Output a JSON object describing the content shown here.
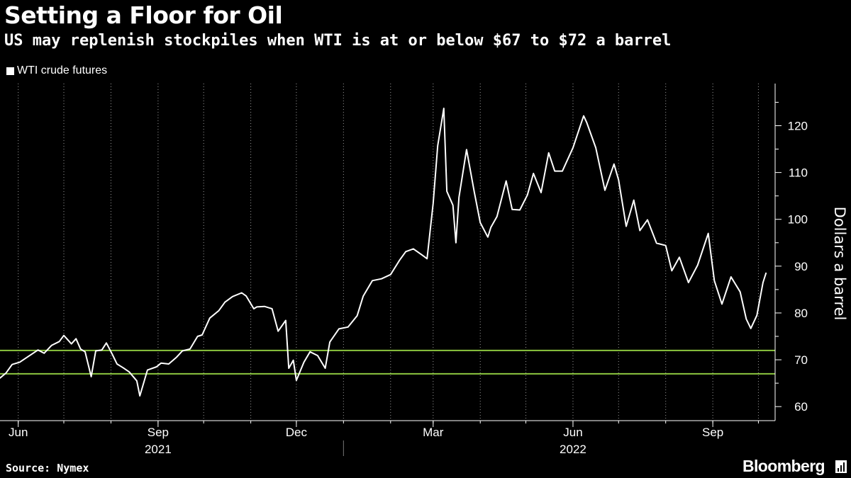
{
  "header": {
    "title": "Setting a Floor for Oil",
    "subtitle": "US may replenish stockpiles when WTI is at or below $67 to $72 a barrel"
  },
  "footer": {
    "source": "Source: Nymex",
    "brand": "Bloomberg"
  },
  "colors": {
    "background": "#000000",
    "series": "#ffffff",
    "threshold": "#8cc63f",
    "grid": "#9a9a9a"
  },
  "chart_data": {
    "type": "line",
    "title": "Setting a Floor for Oil",
    "subtitle": "US may replenish stockpiles when WTI is at or below $67 to $72 a barrel",
    "ylabel": "Dollars a barrel",
    "ylim": [
      57,
      129
    ],
    "y_ticks": [
      60,
      70,
      80,
      90,
      100,
      110,
      120
    ],
    "xlim": [
      "2021-05-20",
      "2022-10-12"
    ],
    "x_ticks": [
      {
        "date": "2021-06-01",
        "label": "Jun"
      },
      {
        "date": "2021-09-01",
        "label": "Sep"
      },
      {
        "date": "2021-12-01",
        "label": "Dec"
      },
      {
        "date": "2022-03-01",
        "label": "Mar"
      },
      {
        "date": "2022-06-01",
        "label": "Jun"
      },
      {
        "date": "2022-09-01",
        "label": "Sep"
      }
    ],
    "year_labels": [
      {
        "label": "2021",
        "center": "2021-09-01"
      },
      {
        "label": "2022",
        "center": "2022-06-01"
      }
    ],
    "year_divider": "2022-01-01",
    "grid": "vertical-dotted",
    "legend": "top-left",
    "reference_lines": [
      72,
      67
    ],
    "series": [
      {
        "name": "WTI crude futures",
        "x": [
          "2021-05-20",
          "2021-05-24",
          "2021-05-28",
          "2021-06-02",
          "2021-06-08",
          "2021-06-14",
          "2021-06-18",
          "2021-06-23",
          "2021-06-28",
          "2021-07-01",
          "2021-07-06",
          "2021-07-09",
          "2021-07-12",
          "2021-07-15",
          "2021-07-19",
          "2021-07-22",
          "2021-07-26",
          "2021-07-29",
          "2021-08-02",
          "2021-08-05",
          "2021-08-09",
          "2021-08-13",
          "2021-08-18",
          "2021-08-20",
          "2021-08-25",
          "2021-08-31",
          "2021-09-03",
          "2021-09-08",
          "2021-09-13",
          "2021-09-17",
          "2021-09-22",
          "2021-09-27",
          "2021-09-30",
          "2021-10-05",
          "2021-10-11",
          "2021-10-15",
          "2021-10-20",
          "2021-10-26",
          "2021-10-29",
          "2021-11-03",
          "2021-11-05",
          "2021-11-10",
          "2021-11-15",
          "2021-11-19",
          "2021-11-24",
          "2021-11-26",
          "2021-11-29",
          "2021-12-01",
          "2021-12-06",
          "2021-12-10",
          "2021-12-15",
          "2021-12-20",
          "2021-12-23",
          "2021-12-29",
          "2022-01-04",
          "2022-01-10",
          "2022-01-14",
          "2022-01-20",
          "2022-01-26",
          "2022-02-01",
          "2022-02-07",
          "2022-02-11",
          "2022-02-16",
          "2022-02-22",
          "2022-02-25",
          "2022-03-01",
          "2022-03-04",
          "2022-03-08",
          "2022-03-10",
          "2022-03-14",
          "2022-03-16",
          "2022-03-18",
          "2022-03-23",
          "2022-03-28",
          "2022-04-01",
          "2022-04-06",
          "2022-04-08",
          "2022-04-12",
          "2022-04-18",
          "2022-04-22",
          "2022-04-27",
          "2022-05-02",
          "2022-05-06",
          "2022-05-11",
          "2022-05-16",
          "2022-05-20",
          "2022-05-25",
          "2022-06-01",
          "2022-06-08",
          "2022-06-10",
          "2022-06-16",
          "2022-06-22",
          "2022-06-28",
          "2022-07-01",
          "2022-07-06",
          "2022-07-11",
          "2022-07-15",
          "2022-07-20",
          "2022-07-26",
          "2022-08-01",
          "2022-08-05",
          "2022-08-10",
          "2022-08-16",
          "2022-08-22",
          "2022-08-29",
          "2022-09-02",
          "2022-09-07",
          "2022-09-13",
          "2022-09-19",
          "2022-09-23",
          "2022-09-26",
          "2022-09-30",
          "2022-10-04",
          "2022-10-06"
        ],
        "values": [
          66.1,
          67.2,
          69.0,
          69.5,
          70.8,
          72.1,
          71.4,
          73.1,
          73.9,
          75.2,
          73.4,
          74.5,
          72.3,
          71.7,
          66.4,
          71.9,
          72.1,
          73.6,
          71.1,
          69.1,
          68.3,
          67.4,
          65.5,
          62.3,
          67.8,
          68.5,
          69.3,
          69.1,
          70.5,
          71.9,
          72.3,
          75.0,
          75.3,
          78.9,
          80.5,
          82.3,
          83.5,
          84.3,
          83.6,
          80.9,
          81.3,
          81.4,
          80.9,
          76.1,
          78.4,
          68.2,
          69.9,
          65.6,
          69.5,
          71.7,
          70.9,
          68.2,
          73.8,
          76.6,
          77.0,
          79.4,
          83.6,
          86.9,
          87.3,
          88.2,
          91.3,
          93.1,
          93.7,
          92.3,
          91.6,
          103.4,
          115.7,
          123.7,
          106.0,
          103.0,
          95.0,
          104.7,
          114.9,
          105.9,
          99.3,
          96.2,
          98.3,
          100.6,
          108.2,
          102.1,
          102.0,
          105.2,
          109.8,
          105.7,
          114.2,
          110.3,
          110.3,
          115.3,
          122.1,
          120.7,
          115.3,
          106.2,
          111.8,
          108.4,
          98.5,
          104.1,
          97.6,
          99.9,
          94.9,
          94.4,
          89.0,
          91.9,
          86.5,
          90.2,
          97.0,
          86.9,
          81.9,
          87.7,
          84.5,
          78.7,
          76.7,
          79.5,
          86.5,
          88.5
        ]
      }
    ]
  }
}
